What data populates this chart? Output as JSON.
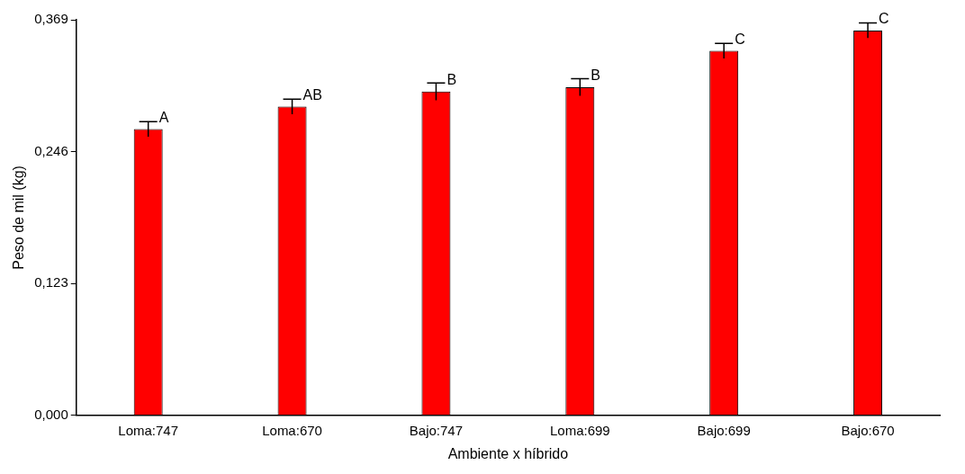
{
  "chart_data": {
    "type": "bar",
    "xlabel": "Ambiente x híbrido",
    "ylabel": "Peso de mil (kg)",
    "categories": [
      "Loma:747",
      "Loma:670",
      "Bajo:747",
      "Loma:699",
      "Bajo:699",
      "Bajo:670"
    ],
    "series": [
      {
        "color": "#ff0000",
        "values": [
          0.267,
          0.288,
          0.302,
          0.306,
          0.34,
          0.359
        ],
        "errors": [
          0.007,
          0.007,
          0.008,
          0.008,
          0.007,
          0.007
        ]
      }
    ],
    "ylim": [
      0,
      0.369
    ],
    "yticks": [
      {
        "value": 0,
        "label": "0,000"
      },
      {
        "value": 0.123,
        "label": "0,123"
      },
      {
        "value": 0.246,
        "label": "0,246"
      },
      {
        "value": 0.369,
        "label": "0,369"
      }
    ],
    "annotations": [
      {
        "text": "A",
        "x": "Loma:747",
        "y": 0.267
      },
      {
        "text": "AB",
        "x": "Loma:670",
        "y": 0.288
      },
      {
        "text": "B",
        "x": "Bajo:747",
        "y": 0.302
      },
      {
        "text": "B",
        "x": "Loma:699",
        "y": 0.306
      },
      {
        "text": "C",
        "x": "Bajo:699",
        "y": 0.34
      },
      {
        "text": "C",
        "x": "Bajo:670",
        "y": 0.359
      }
    ],
    "grid": false,
    "legend": false
  }
}
